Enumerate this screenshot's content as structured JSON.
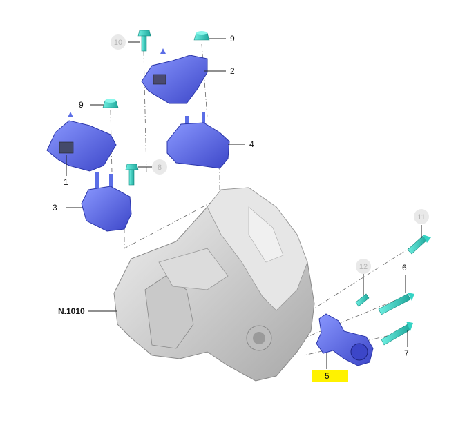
{
  "callouts": {
    "c1": "1",
    "c2": "2",
    "c3": "3",
    "c4": "4",
    "c5": "5",
    "c6": "6",
    "c7": "7",
    "c8": "8",
    "c9a": "9",
    "c9b": "9",
    "c10": "10",
    "c11": "11",
    "c12": "12",
    "assembly": "N.1010"
  },
  "colors": {
    "mount_blue": "#5b6ee6",
    "mount_dark": "#2a35a8",
    "bolt_cyan": "#35d3c4",
    "highlight_yellow": "#fff200",
    "housing_grey": "#d9d9d9"
  }
}
